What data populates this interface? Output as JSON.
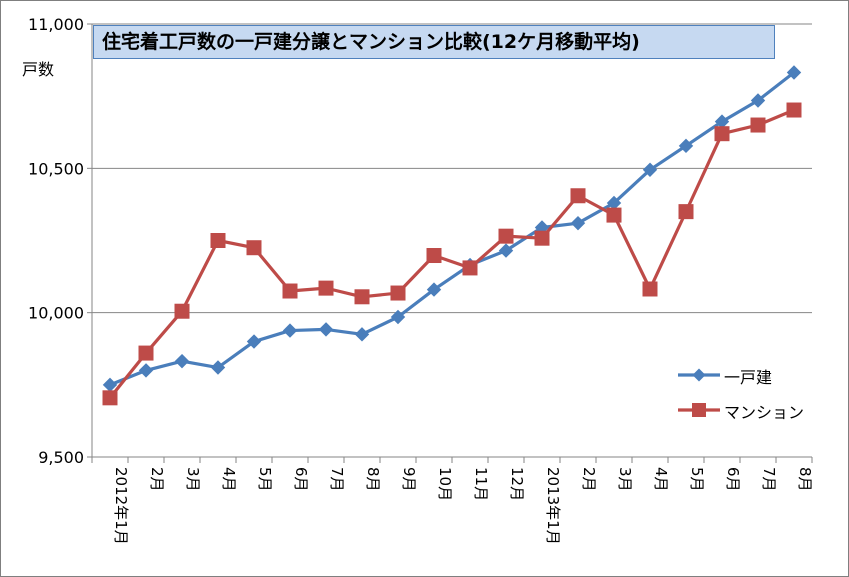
{
  "chart_data": {
    "type": "line",
    "title": "住宅着工戸数の一戸建分譲とマンション比較(12ケ月移動平均)",
    "ylabel": "戸数",
    "xlabel": "",
    "ylim": [
      9500,
      11000
    ],
    "yticks": [
      "9,500",
      "10,000",
      "10,500",
      "11,000"
    ],
    "ytick_values": [
      9500,
      10000,
      10500,
      11000
    ],
    "grid": true,
    "legend_position": "right",
    "categories": [
      "2012年1月",
      "2月",
      "3月",
      "4月",
      "5月",
      "6月",
      "7月",
      "8月",
      "9月",
      "10月",
      "11月",
      "12月",
      "2013年1月",
      "2月",
      "3月",
      "4月",
      "5月",
      "6月",
      "7月",
      "8月"
    ],
    "series": [
      {
        "name": "一戸建",
        "color": "#4a7ebb",
        "marker": "diamond",
        "values": [
          9750,
          9800,
          9832,
          9810,
          9900,
          9938,
          9942,
          9925,
          9985,
          10080,
          10165,
          10215,
          10295,
          10310,
          10380,
          10495,
          10578,
          10662,
          10735,
          10832
        ]
      },
      {
        "name": "マンション",
        "color": "#be4b48",
        "marker": "square",
        "values": [
          9705,
          9860,
          10005,
          10250,
          10225,
          10075,
          10085,
          10055,
          10068,
          10198,
          10155,
          10265,
          10258,
          10405,
          10338,
          10082,
          10350,
          10620,
          10650,
          10702
        ]
      }
    ]
  }
}
